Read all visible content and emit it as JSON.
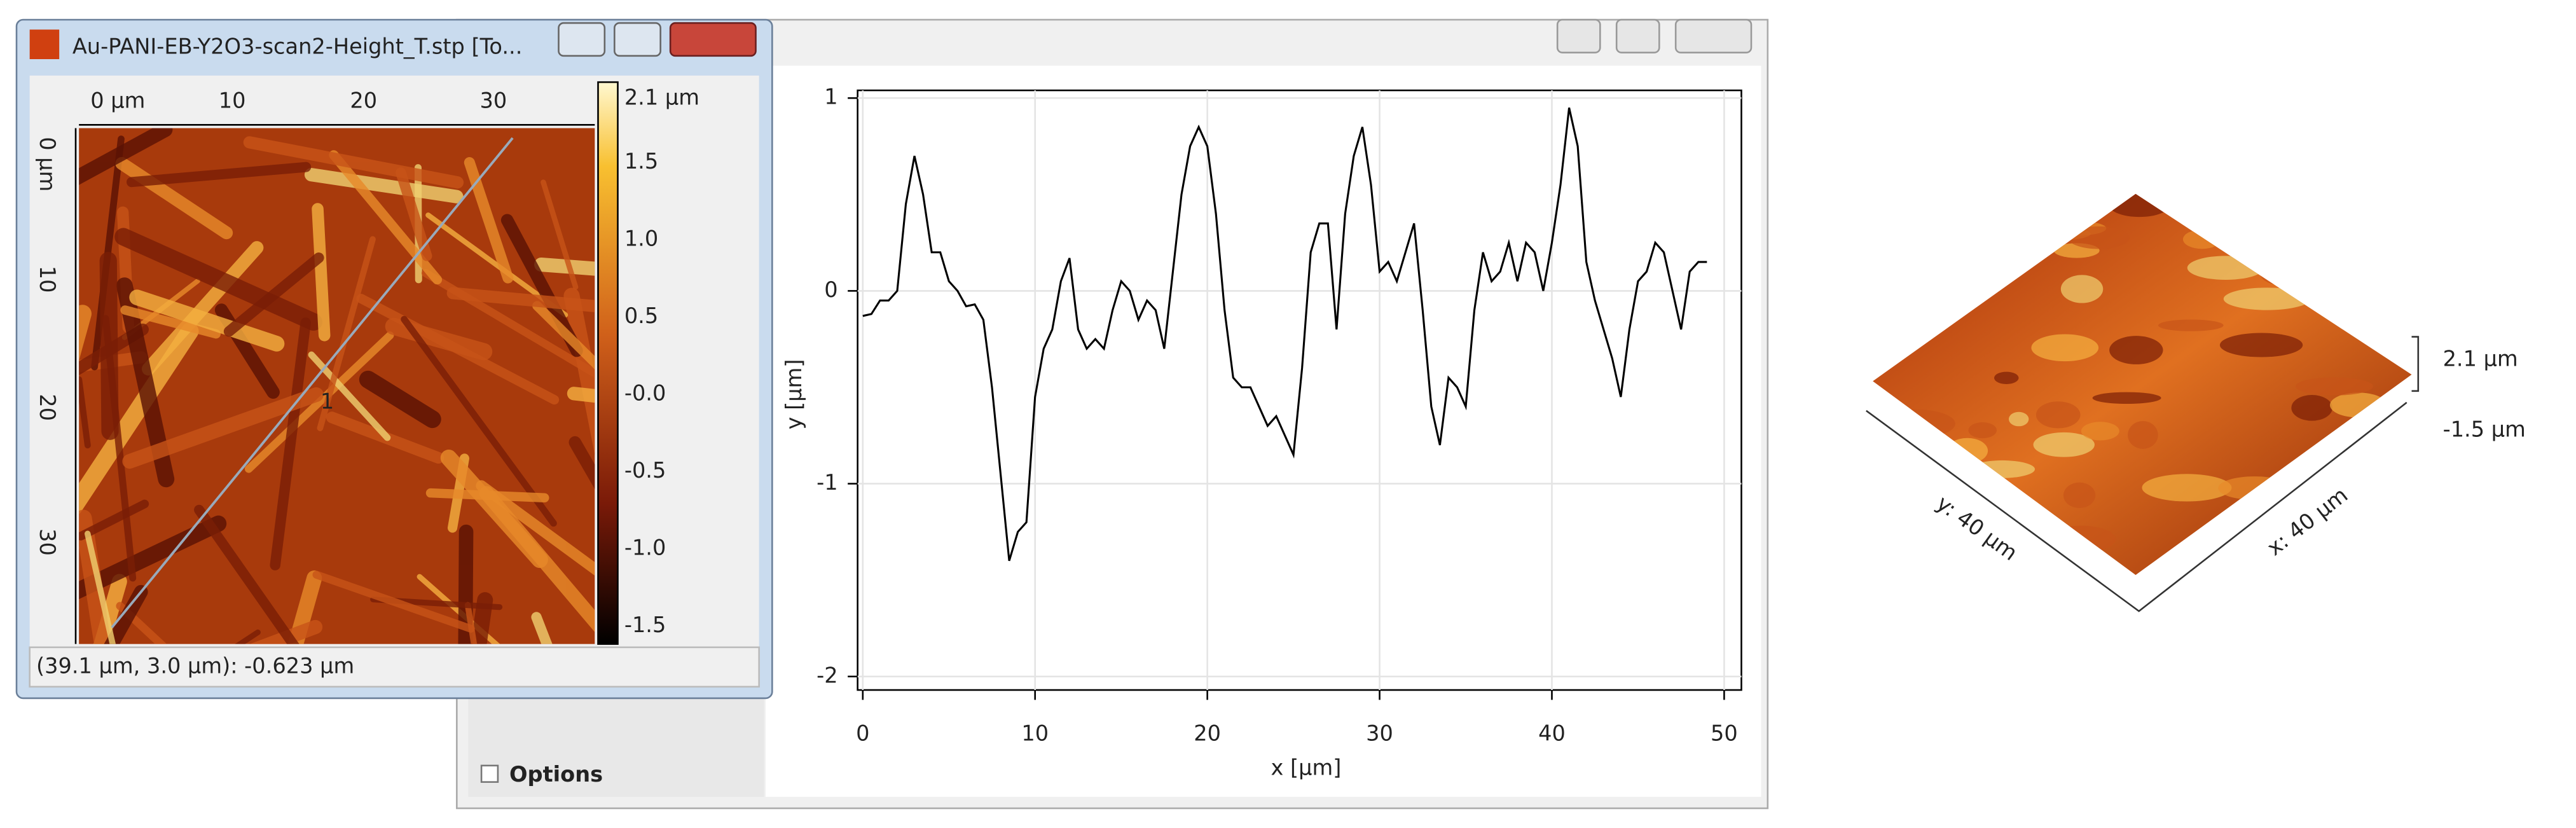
{
  "window": {
    "title": "Au-PANI-EB-Y2O3-scan2-Height_T.stp [To...",
    "status": "(39.1 µm, 3.0 µm): -0.623 µm",
    "x_ruler": [
      "0 µm",
      "10",
      "20",
      "30"
    ],
    "y_ruler": [
      "0 µm",
      "10",
      "20",
      "30"
    ],
    "colorbar": [
      "2.1 µm",
      "1.5",
      "1.0",
      "0.5",
      "-0.0",
      "-0.5",
      "-1.0",
      "-1.5"
    ],
    "profile_label": "1"
  },
  "options": "Options",
  "chart_data": {
    "type": "line",
    "xlabel": "x [µm]",
    "ylabel": "y [µm]",
    "x": [
      0,
      0.5,
      1,
      1.5,
      2,
      2.5,
      3,
      3.5,
      4,
      4.5,
      5,
      5.5,
      6,
      6.5,
      7,
      7.5,
      8,
      8.5,
      9,
      9.5,
      10,
      10.5,
      11,
      11.5,
      12,
      12.5,
      13,
      13.5,
      14,
      14.5,
      15,
      15.5,
      16,
      16.5,
      17,
      17.5,
      18,
      18.5,
      19,
      19.5,
      20,
      20.5,
      21,
      21.5,
      22,
      22.5,
      23,
      23.5,
      24,
      24.5,
      25,
      25.5,
      26,
      26.5,
      27,
      27.5,
      28,
      28.5,
      29,
      29.5,
      30,
      30.5,
      31,
      31.5,
      32,
      32.5,
      33,
      33.5,
      34,
      34.5,
      35,
      35.5,
      36,
      36.5,
      37,
      37.5,
      38,
      38.5,
      39,
      39.5,
      40,
      40.5,
      41,
      41.5,
      42,
      42.5,
      43,
      43.5,
      44,
      44.5,
      45,
      45.5,
      46,
      46.5,
      47,
      47.5,
      48,
      48.5,
      49
    ],
    "series": [
      {
        "color": "#000000",
        "values": [
          -0.13,
          -0.12,
          -0.05,
          -0.05,
          0.0,
          0.45,
          0.7,
          0.5,
          0.2,
          0.2,
          0.05,
          0.0,
          -0.08,
          -0.07,
          -0.15,
          -0.5,
          -0.95,
          -1.4,
          -1.25,
          -1.2,
          -0.55,
          -0.3,
          -0.2,
          0.05,
          0.17,
          -0.2,
          -0.3,
          -0.25,
          -0.3,
          -0.1,
          0.05,
          0.0,
          -0.15,
          -0.05,
          -0.1,
          -0.3,
          0.1,
          0.5,
          0.75,
          0.85,
          0.75,
          0.4,
          -0.1,
          -0.45,
          -0.5,
          -0.5,
          -0.6,
          -0.7,
          -0.65,
          -0.75,
          -0.85,
          -0.4,
          0.2,
          0.35,
          0.35,
          -0.2,
          0.4,
          0.7,
          0.85,
          0.55,
          0.1,
          0.15,
          0.05,
          0.2,
          0.35,
          -0.1,
          -0.6,
          -0.8,
          -0.45,
          -0.5,
          -0.6,
          -0.1,
          0.2,
          0.05,
          0.1,
          0.25,
          0.05,
          0.25,
          0.2,
          0.0,
          0.25,
          0.55,
          0.95,
          0.75,
          0.15,
          -0.05,
          -0.2,
          -0.35,
          -0.55,
          -0.2,
          0.05,
          0.1,
          0.25,
          0.2,
          0.0,
          -0.2,
          0.1,
          0.15,
          0.15
        ]
      }
    ],
    "xlim": [
      -0.3,
      51
    ],
    "ylim": [
      -2.07,
      1.04
    ],
    "xticks": [
      0,
      10,
      20,
      30,
      40,
      50
    ],
    "yticks": [
      -2,
      -1,
      0,
      1
    ],
    "grid": true
  },
  "view3d": {
    "z_labels": [
      "2.1 µm",
      "-1.5 µm"
    ],
    "x_label": "x: 40 µm",
    "y_label": "y: 40 µm"
  }
}
